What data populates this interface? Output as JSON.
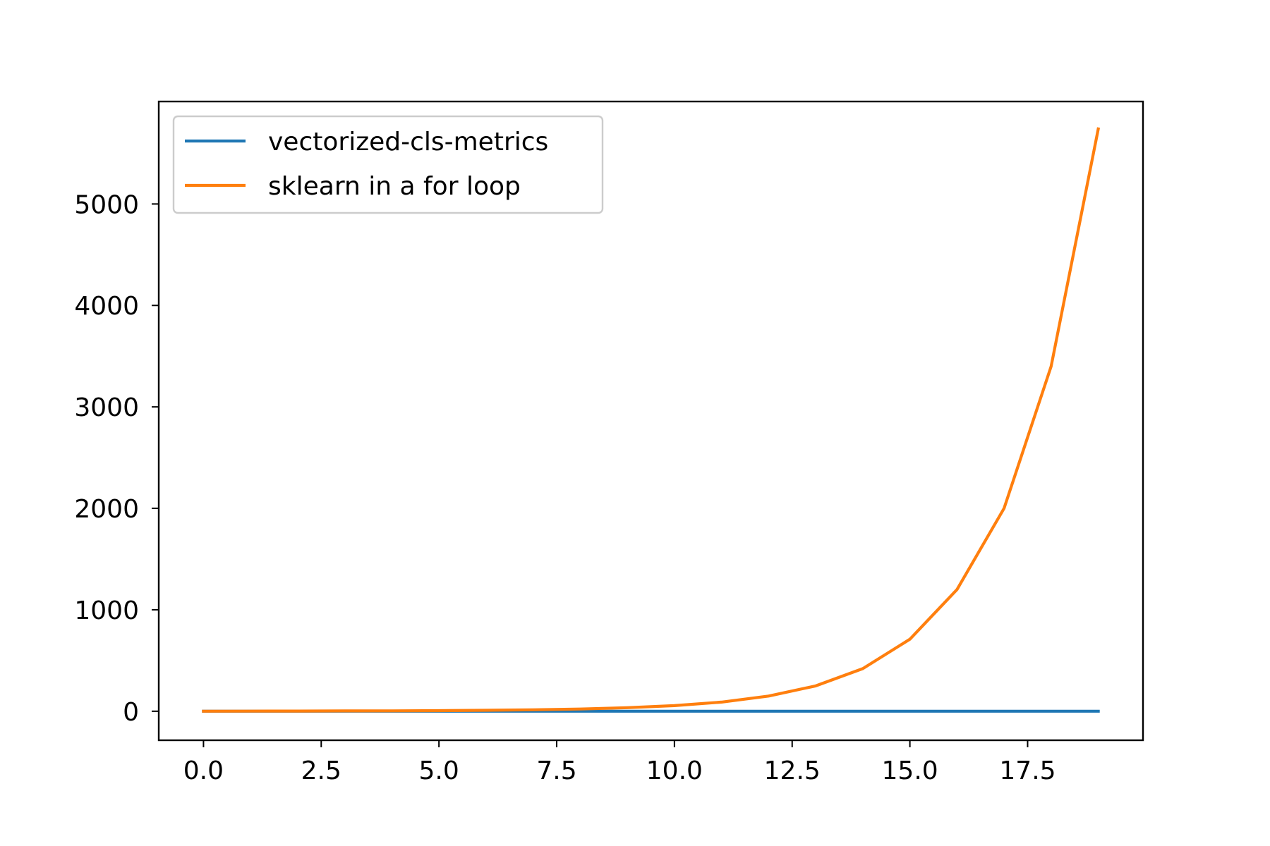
{
  "chart_data": {
    "type": "line",
    "title": "",
    "xlabel": "",
    "ylabel": "",
    "xlim": [
      -0.95,
      19.95
    ],
    "ylim": [
      -286,
      6010
    ],
    "xticks": [
      0.0,
      2.5,
      5.0,
      7.5,
      10.0,
      12.5,
      15.0,
      17.5
    ],
    "xtick_labels": [
      "0.0",
      "2.5",
      "5.0",
      "7.5",
      "10.0",
      "12.5",
      "15.0",
      "17.5"
    ],
    "yticks": [
      0,
      1000,
      2000,
      3000,
      4000,
      5000
    ],
    "ytick_labels": [
      "0",
      "1000",
      "2000",
      "3000",
      "4000",
      "5000"
    ],
    "grid": false,
    "legend_position": "upper-left",
    "x": [
      0,
      1,
      2,
      3,
      4,
      5,
      6,
      7,
      8,
      9,
      10,
      11,
      12,
      13,
      14,
      15,
      16,
      17,
      18,
      19
    ],
    "series": [
      {
        "name": "vectorized-cls-metrics",
        "color": "#1f77b4",
        "values": [
          0,
          0,
          0,
          0,
          0,
          0,
          0,
          0,
          0,
          0,
          0,
          0,
          0,
          0,
          0,
          0,
          0,
          0,
          0,
          0
        ]
      },
      {
        "name": "sklearn in a for loop",
        "color": "#ff7f0e",
        "values": [
          0,
          1,
          2,
          3,
          4,
          6,
          9,
          14,
          22,
          35,
          55,
          90,
          150,
          250,
          420,
          710,
          1200,
          2000,
          3400,
          5740
        ]
      }
    ]
  }
}
